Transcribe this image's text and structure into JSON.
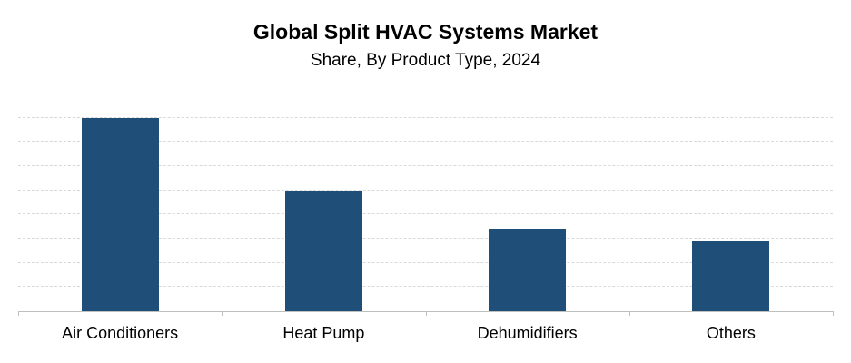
{
  "title": "Global Split HVAC Systems Market",
  "subtitle": "Share, By Product Type, 2024",
  "colors": {
    "bar": "#1F4E79",
    "gridline": "#D9D9D9",
    "axis": "#BFBFBF"
  },
  "chart_data": {
    "type": "bar",
    "title": "Global Split HVAC Systems Market",
    "subtitle": "Share, By Product Type, 2024",
    "categories": [
      "Air Conditioners",
      "Heat Pump",
      "Dehumidifiers",
      "Others"
    ],
    "values": [
      40,
      25,
      17,
      14.5
    ],
    "xlabel": "",
    "ylabel": "",
    "ylim": [
      0,
      45
    ],
    "gridline_step": 5,
    "grid": "horizontal-dashed",
    "yaxis_labels_visible": false,
    "legend": "none",
    "bar_color": "#1F4E79"
  }
}
